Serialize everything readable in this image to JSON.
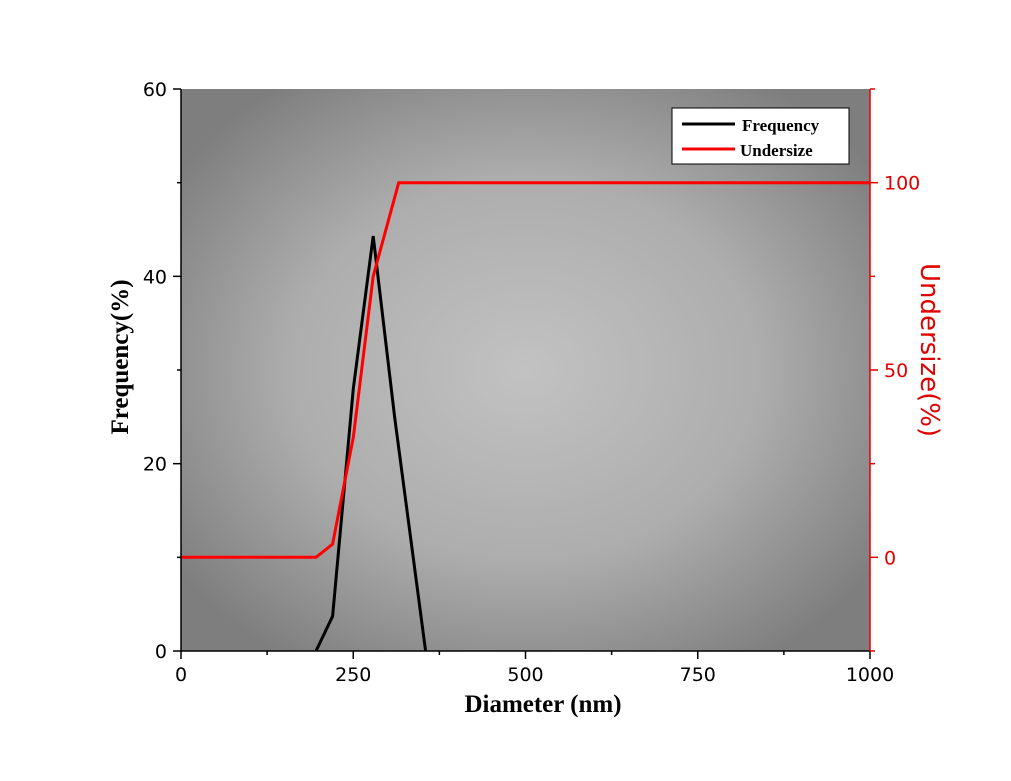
{
  "chart_data": {
    "type": "line",
    "xlabel": "Diameter (nm)",
    "ylabel": "Frequency(%)",
    "y2label": "Undersize(%)",
    "xlim": [
      0,
      1000
    ],
    "ylim": [
      0,
      60
    ],
    "y2lim": [
      -25,
      125
    ],
    "xticks": [
      "0",
      "250",
      "500",
      "750",
      "1000"
    ],
    "yticks": [
      "0",
      "20",
      "40",
      "60"
    ],
    "y2ticks": [
      "0",
      "50",
      "100"
    ],
    "grid": false,
    "legend_position": "top-right",
    "series": [
      {
        "name": "Frequency",
        "axis": "left",
        "color": "#000000",
        "points": [
          [
            196,
            0
          ],
          [
            220,
            3.7
          ],
          [
            250,
            28
          ],
          [
            279,
            44.3
          ],
          [
            310,
            25
          ],
          [
            355,
            0
          ]
        ]
      },
      {
        "name": "Undersize",
        "axis": "right",
        "color": "#ff0000",
        "points": [
          [
            0,
            0
          ],
          [
            196,
            0
          ],
          [
            220,
            3.5
          ],
          [
            250,
            32
          ],
          [
            279,
            75
          ],
          [
            316,
            100
          ],
          [
            1000,
            100
          ]
        ]
      }
    ]
  }
}
